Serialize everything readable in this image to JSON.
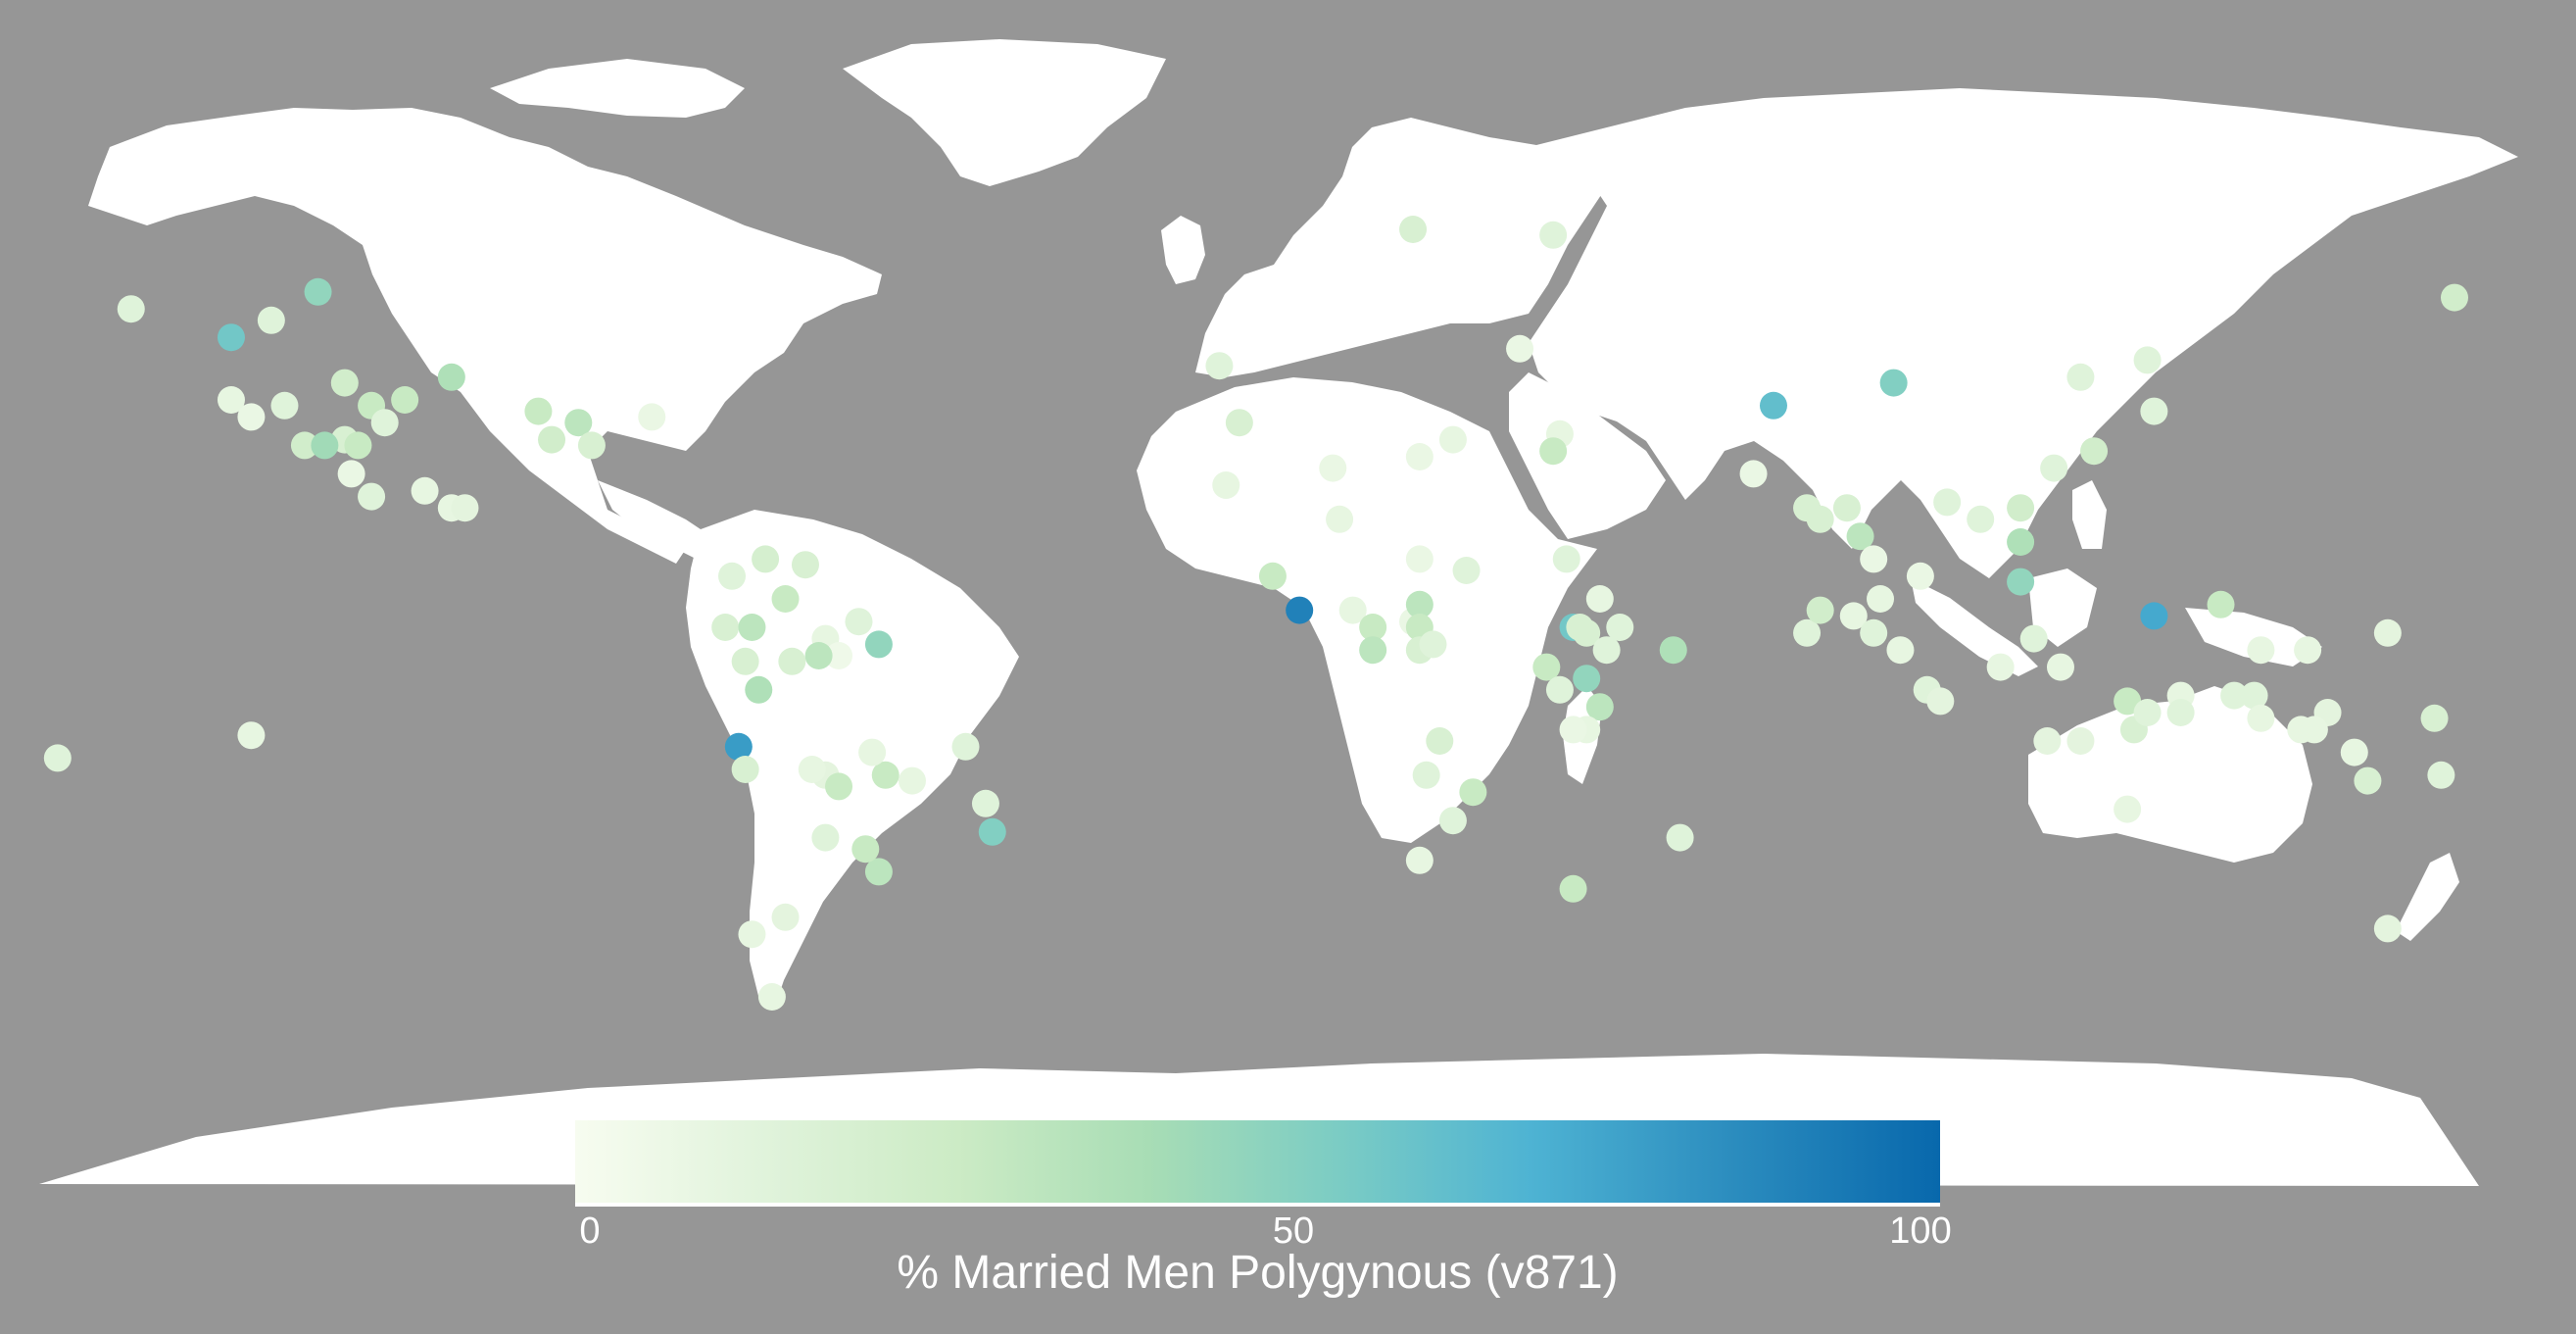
{
  "map": {
    "background_color": "#969696",
    "land_color": "#ffffff",
    "projection": "equirectangular"
  },
  "legend": {
    "title": "% Married Men Polygynous (v871)",
    "ticks": [
      "0",
      "50",
      "100"
    ],
    "min": 0,
    "max": 100,
    "colors": [
      "#f7fcf0",
      "#e0f3db",
      "#ccebc5",
      "#a8ddb5",
      "#7bccc4",
      "#4eb3d3",
      "#2b8cbe",
      "#0868ac"
    ]
  },
  "points": [
    {
      "lon": -168,
      "lat": 66,
      "value": 15
    },
    {
      "lon": -140,
      "lat": 69,
      "value": 50
    },
    {
      "lon": -153,
      "lat": 61,
      "value": 60
    },
    {
      "lon": -147,
      "lat": 64,
      "value": 15
    },
    {
      "lon": -153,
      "lat": 50,
      "value": 10
    },
    {
      "lon": -150,
      "lat": 47,
      "value": 8
    },
    {
      "lon": -145,
      "lat": 49,
      "value": 15
    },
    {
      "lon": -136,
      "lat": 53,
      "value": 25
    },
    {
      "lon": -120,
      "lat": 54,
      "value": 40
    },
    {
      "lon": -132,
      "lat": 49,
      "value": 30
    },
    {
      "lon": -127,
      "lat": 50,
      "value": 30
    },
    {
      "lon": -130,
      "lat": 46,
      "value": 15
    },
    {
      "lon": -136,
      "lat": 43,
      "value": 20
    },
    {
      "lon": -134,
      "lat": 42,
      "value": 30
    },
    {
      "lon": -142,
      "lat": 42,
      "value": 25
    },
    {
      "lon": -139,
      "lat": 42,
      "value": 45
    },
    {
      "lon": -135,
      "lat": 37,
      "value": 8
    },
    {
      "lon": -132,
      "lat": 33,
      "value": 15
    },
    {
      "lon": -124,
      "lat": 34,
      "value": 10
    },
    {
      "lon": -120,
      "lat": 31,
      "value": 10
    },
    {
      "lon": -118,
      "lat": 31,
      "value": 12
    },
    {
      "lon": -107,
      "lat": 48,
      "value": 30
    },
    {
      "lon": -105,
      "lat": 43,
      "value": 25
    },
    {
      "lon": -101,
      "lat": 46,
      "value": 35
    },
    {
      "lon": -99,
      "lat": 42,
      "value": 20
    },
    {
      "lon": -90,
      "lat": 47,
      "value": 8
    },
    {
      "lon": -78,
      "lat": 19,
      "value": 15
    },
    {
      "lon": -73,
      "lat": 22,
      "value": 22
    },
    {
      "lon": -70,
      "lat": 15,
      "value": 30
    },
    {
      "lon": -79,
      "lat": 10,
      "value": 20
    },
    {
      "lon": -75,
      "lat": 10,
      "value": 35
    },
    {
      "lon": -67,
      "lat": 21,
      "value": 20
    },
    {
      "lon": -64,
      "lat": 8,
      "value": 10
    },
    {
      "lon": -59,
      "lat": 11,
      "value": 15
    },
    {
      "lon": -62,
      "lat": 5,
      "value": 5
    },
    {
      "lon": -76,
      "lat": 4,
      "value": 20
    },
    {
      "lon": -74,
      "lat": -1,
      "value": 40
    },
    {
      "lon": -69,
      "lat": 4,
      "value": 20
    },
    {
      "lon": -65,
      "lat": 5,
      "value": 35
    },
    {
      "lon": -56,
      "lat": 7,
      "value": 50
    },
    {
      "lon": -77,
      "lat": -11,
      "value": 80
    },
    {
      "lon": -76,
      "lat": -15,
      "value": 20
    },
    {
      "lon": -64,
      "lat": -16,
      "value": 12
    },
    {
      "lon": -66,
      "lat": -15,
      "value": 10
    },
    {
      "lon": -62,
      "lat": -18,
      "value": 30
    },
    {
      "lon": -55,
      "lat": -16,
      "value": 30
    },
    {
      "lon": -51,
      "lat": -17,
      "value": 10
    },
    {
      "lon": -57,
      "lat": -12,
      "value": 10
    },
    {
      "lon": -43,
      "lat": -11,
      "value": 15
    },
    {
      "lon": -40,
      "lat": -21,
      "value": 15
    },
    {
      "lon": -39,
      "lat": -26,
      "value": 55
    },
    {
      "lon": -64,
      "lat": -27,
      "value": 15
    },
    {
      "lon": -56,
      "lat": -33,
      "value": 35
    },
    {
      "lon": -58,
      "lat": -29,
      "value": 30
    },
    {
      "lon": -70,
      "lat": -41,
      "value": 12
    },
    {
      "lon": -75,
      "lat": -44,
      "value": 10
    },
    {
      "lon": -72,
      "lat": -55,
      "value": 10
    },
    {
      "lon": -179,
      "lat": -13,
      "value": 15
    },
    {
      "lon": -150,
      "lat": -9,
      "value": 10
    },
    {
      "lon": 3,
      "lat": 19,
      "value": 30
    },
    {
      "lon": 7,
      "lat": 13,
      "value": 90
    },
    {
      "lon": 12,
      "lat": 38,
      "value": 8
    },
    {
      "lon": 13,
      "lat": 29,
      "value": 10
    },
    {
      "lon": 15,
      "lat": 13,
      "value": 10
    },
    {
      "lon": 18,
      "lat": 10,
      "value": 30
    },
    {
      "lon": 18,
      "lat": 6,
      "value": 35
    },
    {
      "lon": 24,
      "lat": 11,
      "value": 8
    },
    {
      "lon": 25,
      "lat": 22,
      "value": 8
    },
    {
      "lon": 25,
      "lat": 14,
      "value": 35
    },
    {
      "lon": 25,
      "lat": 10,
      "value": 30
    },
    {
      "lon": 25,
      "lat": 6,
      "value": 20
    },
    {
      "lon": 27,
      "lat": 7,
      "value": 15
    },
    {
      "lon": 32,
      "lat": 20,
      "value": 15
    },
    {
      "lon": 28,
      "lat": -10,
      "value": 20
    },
    {
      "lon": 26,
      "lat": -16,
      "value": 15
    },
    {
      "lon": 25,
      "lat": -31,
      "value": 10
    },
    {
      "lon": 33,
      "lat": -19,
      "value": 30
    },
    {
      "lon": 30,
      "lat": -24,
      "value": 15
    },
    {
      "lon": 30,
      "lat": 43,
      "value": 10
    },
    {
      "lon": 25,
      "lat": 40,
      "value": 8
    },
    {
      "lon": 47,
      "lat": 22,
      "value": 15
    },
    {
      "lon": 48,
      "lat": 10,
      "value": 60
    },
    {
      "lon": 49,
      "lat": 10,
      "value": 20
    },
    {
      "lon": 50,
      "lat": 9,
      "value": 20
    },
    {
      "lon": 52,
      "lat": 15,
      "value": 10
    },
    {
      "lon": 44,
      "lat": 3,
      "value": 30
    },
    {
      "lon": 46,
      "lat": -1,
      "value": 15
    },
    {
      "lon": 50,
      "lat": 1,
      "value": 50
    },
    {
      "lon": 52,
      "lat": -4,
      "value": 35
    },
    {
      "lon": 50,
      "lat": -8,
      "value": 10
    },
    {
      "lon": 48,
      "lat": -8,
      "value": 8
    },
    {
      "lon": 53,
      "lat": 6,
      "value": 15
    },
    {
      "lon": 55,
      "lat": 10,
      "value": 15
    },
    {
      "lon": 63,
      "lat": 6,
      "value": 40
    },
    {
      "lon": 48,
      "lat": -36,
      "value": 30
    },
    {
      "lon": 64,
      "lat": -27,
      "value": 15
    },
    {
      "lon": 24,
      "lat": 80,
      "value": 20
    },
    {
      "lon": 45,
      "lat": 79,
      "value": 15
    },
    {
      "lon": -5,
      "lat": 56,
      "value": 15
    },
    {
      "lon": -2,
      "lat": 46,
      "value": 20
    },
    {
      "lon": -4,
      "lat": 35,
      "value": 10
    },
    {
      "lon": 40,
      "lat": 59,
      "value": 8
    },
    {
      "lon": 46,
      "lat": 44,
      "value": 10
    },
    {
      "lon": 45,
      "lat": 41,
      "value": 30
    },
    {
      "lon": 78,
      "lat": 49,
      "value": 65
    },
    {
      "lon": 96,
      "lat": 53,
      "value": 55
    },
    {
      "lon": 75,
      "lat": 37,
      "value": 8
    },
    {
      "lon": 85,
      "lat": 29,
      "value": 20
    },
    {
      "lon": 89,
      "lat": 31,
      "value": 20
    },
    {
      "lon": 83,
      "lat": 31,
      "value": 20
    },
    {
      "lon": 91,
      "lat": 26,
      "value": 35
    },
    {
      "lon": 104,
      "lat": 32,
      "value": 15
    },
    {
      "lon": 124,
      "lat": 54,
      "value": 15
    },
    {
      "lon": 134,
      "lat": 57,
      "value": 15
    },
    {
      "lon": 135,
      "lat": 48,
      "value": 15
    },
    {
      "lon": 126,
      "lat": 41,
      "value": 25
    },
    {
      "lon": 120,
      "lat": 38,
      "value": 15
    },
    {
      "lon": 115,
      "lat": 31,
      "value": 25
    },
    {
      "lon": 115,
      "lat": 25,
      "value": 40
    },
    {
      "lon": 115,
      "lat": 18,
      "value": 50
    },
    {
      "lon": 109,
      "lat": 29,
      "value": 15
    },
    {
      "lon": 93,
      "lat": 22,
      "value": 8
    },
    {
      "lon": 83,
      "lat": 9,
      "value": 15
    },
    {
      "lon": 85,
      "lat": 13,
      "value": 25
    },
    {
      "lon": 90,
      "lat": 12,
      "value": 10
    },
    {
      "lon": 94,
      "lat": 15,
      "value": 10
    },
    {
      "lon": 100,
      "lat": 19,
      "value": 8
    },
    {
      "lon": 93,
      "lat": 9,
      "value": 15
    },
    {
      "lon": 97,
      "lat": 6,
      "value": 10
    },
    {
      "lon": 135,
      "lat": 12,
      "value": 75
    },
    {
      "lon": 145,
      "lat": 14,
      "value": 30
    },
    {
      "lon": 151,
      "lat": 6,
      "value": 10
    },
    {
      "lon": 158,
      "lat": 6,
      "value": 10
    },
    {
      "lon": 101,
      "lat": -1,
      "value": 15
    },
    {
      "lon": 103,
      "lat": -3,
      "value": 12
    },
    {
      "lon": 112,
      "lat": 3,
      "value": 10
    },
    {
      "lon": 117,
      "lat": 8,
      "value": 15
    },
    {
      "lon": 121,
      "lat": 3,
      "value": 10
    },
    {
      "lon": 131,
      "lat": -3,
      "value": 30
    },
    {
      "lon": 139,
      "lat": -2,
      "value": 10
    },
    {
      "lon": 147,
      "lat": -2,
      "value": 15
    },
    {
      "lon": 150,
      "lat": -2,
      "value": 15
    },
    {
      "lon": 151,
      "lat": -6,
      "value": 10
    },
    {
      "lon": 157,
      "lat": -8,
      "value": 10
    },
    {
      "lon": 161,
      "lat": -5,
      "value": 12
    },
    {
      "lon": 159,
      "lat": -8,
      "value": 10
    },
    {
      "lon": 119,
      "lat": -10,
      "value": 12
    },
    {
      "lon": 124,
      "lat": -10,
      "value": 12
    },
    {
      "lon": 132,
      "lat": -8,
      "value": 20
    },
    {
      "lon": 134,
      "lat": -5,
      "value": 15
    },
    {
      "lon": 139,
      "lat": -5,
      "value": 15
    },
    {
      "lon": 131,
      "lat": -22,
      "value": 10
    },
    {
      "lon": 177,
      "lat": -6,
      "value": 20
    },
    {
      "lon": 167,
      "lat": -17,
      "value": 20
    },
    {
      "lon": 165,
      "lat": -12,
      "value": 10
    },
    {
      "lon": 178,
      "lat": -16,
      "value": 15
    },
    {
      "lon": 170,
      "lat": -43,
      "value": 12
    },
    {
      "lon": 170,
      "lat": 9,
      "value": 12
    },
    {
      "lon": 180,
      "lat": 68,
      "value": 25
    }
  ]
}
